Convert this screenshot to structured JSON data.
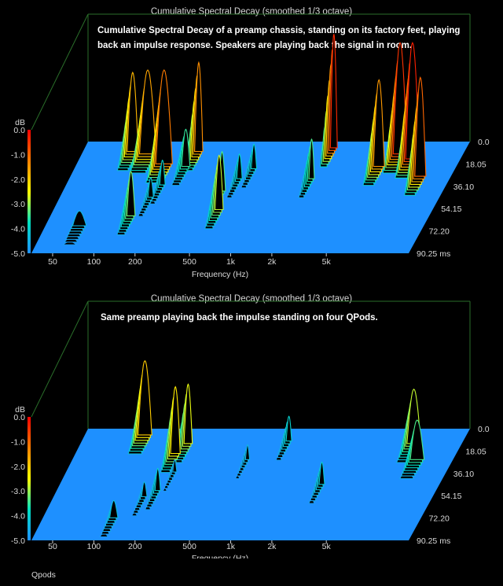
{
  "chart_data": [
    {
      "type": "waterfall",
      "title": "Cumulative Spectral Decay (smoothed 1/3 octave)",
      "annotation": "Cumulative Spectral Decay of a preamp chassis, standing on its factory feet, playing back an impulse response. Speakers are playing back the signal in room.",
      "xlabel": "Frequency (Hz)",
      "x_ticks": [
        "50",
        "100",
        "200",
        "500",
        "1k",
        "2k",
        "5k"
      ],
      "x_scale": "log",
      "zlabel": "dB",
      "z_ticks": [
        "0.0",
        "-1.0",
        "-2.0",
        "-3.0",
        "-4.0",
        "-5.0"
      ],
      "zlim": [
        -5.0,
        0.0
      ],
      "t_ticks": [
        "0.0",
        "18.05",
        "36.10",
        "54.15",
        "72.20",
        "90.25 ms"
      ],
      "tlim_ms": [
        0.0,
        90.25
      ],
      "floor_color": "#1e90ff",
      "colormap": [
        "#1e90ff",
        "#00e0c0",
        "#ffff00",
        "#ff8000",
        "#ff0000"
      ],
      "peaks": [
        {
          "f": 62,
          "t": 68,
          "z": 0.6,
          "w": 0.05
        },
        {
          "f": 80,
          "t": 8,
          "z": 3.2,
          "w": 0.04
        },
        {
          "f": 105,
          "t": 10,
          "z": 3.4,
          "w": 0.06
        },
        {
          "f": 135,
          "t": 60,
          "z": 1.8,
          "w": 0.03
        },
        {
          "f": 150,
          "t": 18,
          "z": 3.8,
          "w": 0.06
        },
        {
          "f": 160,
          "t": 45,
          "z": 0.8,
          "w": 0.02
        },
        {
          "f": 175,
          "t": 35,
          "z": 1.0,
          "w": 0.02
        },
        {
          "f": 220,
          "t": 20,
          "z": 1.5,
          "w": 0.03
        },
        {
          "f": 240,
          "t": 8,
          "z": 3.6,
          "w": 0.03
        },
        {
          "f": 500,
          "t": 40,
          "z": 1.6,
          "w": 0.025
        },
        {
          "f": 560,
          "t": 55,
          "z": 2.2,
          "w": 0.03
        },
        {
          "f": 600,
          "t": 30,
          "z": 1.0,
          "w": 0.02
        },
        {
          "f": 700,
          "t": 22,
          "z": 1.0,
          "w": 0.02
        },
        {
          "f": 2000,
          "t": 30,
          "z": 1.6,
          "w": 0.02
        },
        {
          "f": 2200,
          "t": 5,
          "z": 4.6,
          "w": 0.025
        },
        {
          "f": 5500,
          "t": 20,
          "z": 3.5,
          "w": 0.04
        },
        {
          "f": 7000,
          "t": 10,
          "z": 4.5,
          "w": 0.05
        },
        {
          "f": 9000,
          "t": 14,
          "z": 4.7,
          "w": 0.05
        },
        {
          "f": 12000,
          "t": 28,
          "z": 4.0,
          "w": 0.04
        }
      ]
    },
    {
      "type": "waterfall",
      "title": "Cumulative Spectral Decay (smoothed 1/3 octave)",
      "annotation": "Same preamp playing back the impulse standing on four QPods.",
      "xlabel": "Frequency (Hz)",
      "x_ticks": [
        "50",
        "100",
        "200",
        "500",
        "1k",
        "2k",
        "5k"
      ],
      "x_scale": "log",
      "zlabel": "dB",
      "z_ticks": [
        "0.0",
        "-1.0",
        "-2.0",
        "-3.0",
        "-4.0",
        "-5.0"
      ],
      "zlim": [
        -5.0,
        0.0
      ],
      "t_ticks": [
        "0.0",
        "18.05",
        "36.10",
        "54.15",
        "72.20",
        "90.25 ms"
      ],
      "tlim_ms": [
        0.0,
        90.25
      ],
      "floor_color": "#1e90ff",
      "colormap": [
        "#1e90ff",
        "#00e0c0",
        "#ffff00",
        "#ff8000",
        "#ff0000"
      ],
      "peaks": [
        {
          "f": 95,
          "t": 5,
          "z": 3.0,
          "w": 0.05
        },
        {
          "f": 115,
          "t": 72,
          "z": 0.7,
          "w": 0.03
        },
        {
          "f": 160,
          "t": 55,
          "z": 0.6,
          "w": 0.02
        },
        {
          "f": 190,
          "t": 50,
          "z": 0.9,
          "w": 0.02
        },
        {
          "f": 185,
          "t": 20,
          "z": 2.7,
          "w": 0.035
        },
        {
          "f": 210,
          "t": 12,
          "z": 2.4,
          "w": 0.03
        },
        {
          "f": 215,
          "t": 35,
          "z": 0.5,
          "w": 0.015
        },
        {
          "f": 650,
          "t": 25,
          "z": 0.6,
          "w": 0.015
        },
        {
          "f": 1100,
          "t": 10,
          "z": 1.0,
          "w": 0.02
        },
        {
          "f": 2800,
          "t": 45,
          "z": 0.9,
          "w": 0.02
        },
        {
          "f": 9000,
          "t": 12,
          "z": 2.2,
          "w": 0.05
        },
        {
          "f": 11000,
          "t": 25,
          "z": 1.6,
          "w": 0.05
        }
      ]
    }
  ],
  "footer_label": "Qpods"
}
